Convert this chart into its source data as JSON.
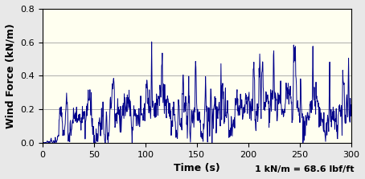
{
  "title": "",
  "xlabel": "Time (s)",
  "ylabel": "Wind Force (kN/m)",
  "annotation": "1 kN/m = 68.6 lbf/ft",
  "xlim": [
    0,
    300
  ],
  "ylim": [
    0,
    0.8
  ],
  "yticks": [
    0,
    0.2,
    0.4,
    0.6,
    0.8
  ],
  "xticks": [
    0,
    50,
    100,
    150,
    200,
    250,
    300
  ],
  "line_color": "#00008B",
  "background_color": "#FFFFF0",
  "grid_color": "#A0A0A0",
  "fig_background": "#E8E8E8",
  "seed": 7,
  "n_points": 900
}
